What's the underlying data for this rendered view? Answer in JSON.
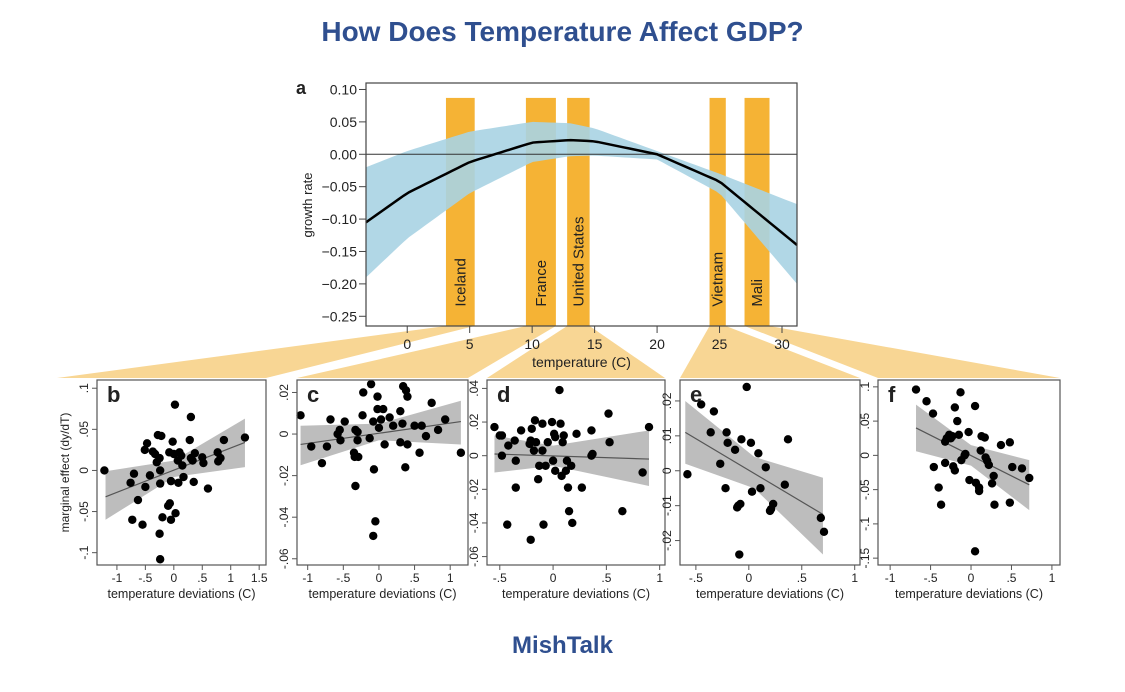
{
  "header": {
    "title": "How Does Temperature Affect GDP?"
  },
  "footer": {
    "brand": "MishTalk"
  },
  "colors": {
    "title": "#2f4f8f",
    "bars": "#f5b335",
    "funnel": "#f8d694",
    "band_main": "#a9d3e3",
    "band_panel": "#bdbdbd",
    "points": "#000000"
  },
  "chart_data": [
    {
      "panel": "a",
      "type": "line",
      "xlabel": "temperature (C)",
      "ylabel": "growth rate",
      "xlim": [
        -3.3,
        31.2
      ],
      "ylim": [
        -0.265,
        0.11
      ],
      "xticks": [
        0,
        5,
        10,
        15,
        20,
        25,
        30
      ],
      "yticks": [
        0.1,
        0.05,
        0.0,
        -0.05,
        -0.1,
        -0.15,
        -0.2,
        -0.25
      ],
      "ytick_labels": [
        "0.10",
        "0.05",
        "0.00",
        "−0.05",
        "−0.10",
        "−0.15",
        "−0.20",
        "−0.25"
      ],
      "curve": {
        "x": [
          -3.3,
          0,
          5,
          10,
          13,
          15,
          20,
          25,
          31.2
        ],
        "y": [
          -0.105,
          -0.06,
          -0.012,
          0.018,
          0.022,
          0.02,
          0.0,
          -0.042,
          -0.14
        ]
      },
      "band_upper": {
        "x": [
          -3.3,
          0,
          5,
          10,
          13,
          15,
          20,
          25,
          31.2
        ],
        "y": [
          -0.02,
          0.005,
          0.035,
          0.05,
          0.048,
          0.04,
          0.005,
          -0.03,
          -0.077
        ]
      },
      "band_lower": {
        "x": [
          -3.3,
          0,
          5,
          10,
          13,
          15,
          20,
          25,
          31.2
        ],
        "y": [
          -0.19,
          -0.13,
          -0.06,
          -0.012,
          -0.003,
          -0.002,
          -0.008,
          -0.06,
          -0.2
        ]
      },
      "countries": [
        {
          "name": "Iceland",
          "range": [
            3.1,
            5.4
          ]
        },
        {
          "name": "France",
          "range": [
            9.5,
            11.9
          ]
        },
        {
          "name": "United States",
          "range": [
            12.8,
            14.6
          ]
        },
        {
          "name": "Vietnam",
          "range": [
            24.2,
            25.5
          ]
        },
        {
          "name": "Mali",
          "range": [
            27.0,
            29.0
          ]
        }
      ]
    },
    {
      "panel": "b",
      "type": "scatter",
      "xlabel": "temperature deviations (C)",
      "ylabel": "marginal effect (dy/dT)",
      "xlim": [
        -1.35,
        1.62
      ],
      "ylim": [
        -0.115,
        0.11
      ],
      "xticks": [
        -1,
        -0.5,
        0,
        0.5,
        1,
        1.5
      ],
      "xtick_labels": [
        "-1",
        "-.5",
        "0",
        ".5",
        "1",
        "1.5"
      ],
      "yticks": [
        -0.1,
        -0.05,
        0,
        0.05,
        0.1
      ],
      "ytick_labels": [
        "-.1",
        "-.05",
        "0",
        ".05",
        ".1"
      ],
      "fit": {
        "x": [
          -1.2,
          1.25
        ],
        "y": [
          -0.032,
          0.034
        ]
      },
      "band": {
        "x": [
          -1.2,
          0,
          1.25
        ],
        "lower": [
          -0.06,
          -0.008,
          0.004
        ],
        "upper": [
          -0.001,
          0.012,
          0.063
        ]
      },
      "points": [
        [
          -1.22,
          0
        ],
        [
          -0.76,
          -0.015
        ],
        [
          -0.7,
          -0.004
        ],
        [
          -0.73,
          -0.06
        ],
        [
          -0.63,
          -0.036
        ],
        [
          -0.55,
          -0.066
        ],
        [
          -0.5,
          -0.02
        ],
        [
          -0.51,
          0.025
        ],
        [
          -0.47,
          0.033
        ],
        [
          -0.42,
          -0.006
        ],
        [
          -0.37,
          0.023
        ],
        [
          -0.33,
          0.02
        ],
        [
          -0.3,
          0.01
        ],
        [
          -0.28,
          0.043
        ],
        [
          -0.25,
          0.015
        ],
        [
          -0.22,
          0.042
        ],
        [
          -0.24,
          0
        ],
        [
          -0.24,
          -0.016
        ],
        [
          -0.25,
          -0.077
        ],
        [
          -0.24,
          -0.108
        ],
        [
          -0.2,
          -0.057
        ],
        [
          -0.1,
          -0.043
        ],
        [
          -0.07,
          -0.04
        ],
        [
          -0.05,
          -0.06
        ],
        [
          -0.05,
          -0.013
        ],
        [
          -0.08,
          0.022
        ],
        [
          -0.02,
          0.035
        ],
        [
          0,
          0.02
        ],
        [
          0.02,
          0.08
        ],
        [
          0.03,
          -0.052
        ],
        [
          0.07,
          0.012
        ],
        [
          0.08,
          -0.015
        ],
        [
          0.1,
          0.022
        ],
        [
          0.13,
          0.018
        ],
        [
          0.15,
          0.006
        ],
        [
          0.17,
          -0.008
        ],
        [
          0.28,
          0.037
        ],
        [
          0.3,
          0.065
        ],
        [
          0.3,
          0.015
        ],
        [
          0.33,
          0.012
        ],
        [
          0.35,
          -0.014
        ],
        [
          0.37,
          0.021
        ],
        [
          0.5,
          0.016
        ],
        [
          0.52,
          0.009
        ],
        [
          0.6,
          -0.022
        ],
        [
          0.77,
          0.022
        ],
        [
          0.78,
          0.011
        ],
        [
          0.82,
          0.015
        ],
        [
          0.88,
          0.037
        ],
        [
          1.25,
          0.04
        ]
      ]
    },
    {
      "panel": "c",
      "type": "scatter",
      "xlabel": "temperature deviations (C)",
      "xlim": [
        -1.15,
        1.25
      ],
      "ylim": [
        -0.063,
        0.026
      ],
      "xticks": [
        -1,
        -0.5,
        0,
        0.5,
        1
      ],
      "xtick_labels": [
        "-1",
        "-.5",
        "0",
        ".5",
        "1"
      ],
      "yticks": [
        -0.06,
        -0.04,
        -0.02,
        0,
        0.02
      ],
      "ytick_labels": [
        "-.06",
        "-.04",
        "-.02",
        "0",
        ".02"
      ],
      "fit": {
        "x": [
          -1.1,
          1.15
        ],
        "y": [
          -0.005,
          0.006
        ]
      },
      "band": {
        "x": [
          -1.1,
          0,
          1.15
        ],
        "lower": [
          -0.015,
          -0.003,
          -0.005
        ],
        "upper": [
          0.004,
          0.005,
          0.016
        ]
      },
      "points": [
        [
          -1.1,
          0.009
        ],
        [
          -0.95,
          -0.006
        ],
        [
          -0.8,
          -0.014
        ],
        [
          -0.73,
          -0.006
        ],
        [
          -0.68,
          0.007
        ],
        [
          -0.58,
          0
        ],
        [
          -0.55,
          0.002
        ],
        [
          -0.54,
          -0.003
        ],
        [
          -0.48,
          0.006
        ],
        [
          -0.35,
          -0.009
        ],
        [
          -0.34,
          -0.011
        ],
        [
          -0.33,
          -0.025
        ],
        [
          -0.33,
          0.002
        ],
        [
          -0.3,
          0.001
        ],
        [
          -0.3,
          -0.003
        ],
        [
          -0.29,
          -0.011
        ],
        [
          -0.22,
          0.02
        ],
        [
          -0.23,
          0.009
        ],
        [
          -0.13,
          -0.002
        ],
        [
          -0.11,
          0.024
        ],
        [
          -0.08,
          0.006
        ],
        [
          -0.07,
          -0.017
        ],
        [
          -0.05,
          -0.042
        ],
        [
          -0.08,
          -0.049
        ],
        [
          -0.02,
          0.018
        ],
        [
          -0.02,
          0.012
        ],
        [
          0,
          0.003
        ],
        [
          0.03,
          0.007
        ],
        [
          0.06,
          0.012
        ],
        [
          0.08,
          -0.005
        ],
        [
          0.15,
          0.008
        ],
        [
          0.2,
          0.004
        ],
        [
          0.3,
          -0.004
        ],
        [
          0.3,
          0.011
        ],
        [
          0.33,
          0.005
        ],
        [
          0.34,
          0.023
        ],
        [
          0.38,
          0.021
        ],
        [
          0.4,
          0.018
        ],
        [
          0.37,
          -0.016
        ],
        [
          0.4,
          -0.005
        ],
        [
          0.5,
          0.004
        ],
        [
          0.57,
          -0.009
        ],
        [
          0.6,
          0.004
        ],
        [
          0.66,
          -0.001
        ],
        [
          0.74,
          0.015
        ],
        [
          0.83,
          0.002
        ],
        [
          0.93,
          0.007
        ],
        [
          1.15,
          -0.009
        ]
      ]
    },
    {
      "panel": "d",
      "type": "scatter",
      "xlabel": "temperature deviations (C)",
      "xlim": [
        -0.62,
        1.05
      ],
      "ylim": [
        -0.065,
        0.045
      ],
      "xticks": [
        -0.5,
        0,
        0.5,
        1
      ],
      "xtick_labels": [
        "-.5",
        "0",
        ".5",
        "1"
      ],
      "yticks": [
        -0.06,
        -0.04,
        -0.02,
        0,
        0.02,
        0.04
      ],
      "ytick_labels": [
        "-.06",
        "-.04",
        "-.02",
        "0",
        ".02",
        ".04"
      ],
      "fit": {
        "x": [
          -0.55,
          0.9
        ],
        "y": [
          0.001,
          -0.002
        ]
      },
      "band": {
        "x": [
          -0.55,
          0,
          0.9
        ],
        "lower": [
          -0.01,
          -0.006,
          -0.018
        ],
        "upper": [
          0.012,
          0.006,
          0.015
        ]
      },
      "points": [
        [
          -0.55,
          0.017
        ],
        [
          -0.5,
          0.012
        ],
        [
          -0.48,
          0.012
        ],
        [
          -0.48,
          0
        ],
        [
          -0.42,
          0.006
        ],
        [
          -0.43,
          -0.041
        ],
        [
          -0.36,
          0.009
        ],
        [
          -0.35,
          -0.003
        ],
        [
          -0.35,
          -0.019
        ],
        [
          -0.3,
          0.015
        ],
        [
          -0.22,
          0.007
        ],
        [
          -0.21,
          0.009
        ],
        [
          -0.2,
          0.016
        ],
        [
          -0.21,
          -0.05
        ],
        [
          -0.17,
          0.021
        ],
        [
          -0.16,
          0.008
        ],
        [
          -0.18,
          0.003
        ],
        [
          -0.14,
          -0.014
        ],
        [
          -0.13,
          -0.006
        ],
        [
          -0.1,
          0.019
        ],
        [
          -0.1,
          0.003
        ],
        [
          -0.07,
          -0.006
        ],
        [
          -0.09,
          -0.041
        ],
        [
          -0.05,
          0.008
        ],
        [
          -0.01,
          0.02
        ],
        [
          0,
          -0.003
        ],
        [
          0.01,
          0.013
        ],
        [
          0.02,
          0.011
        ],
        [
          0.02,
          -0.009
        ],
        [
          0.06,
          0.039
        ],
        [
          0.07,
          0.019
        ],
        [
          0.08,
          -0.012
        ],
        [
          0.09,
          0.008
        ],
        [
          0.1,
          0.012
        ],
        [
          0.13,
          -0.003
        ],
        [
          0.12,
          -0.009
        ],
        [
          0.14,
          -0.019
        ],
        [
          0.15,
          -0.033
        ],
        [
          0.17,
          -0.006
        ],
        [
          0.18,
          -0.04
        ],
        [
          0.22,
          0.013
        ],
        [
          0.27,
          -0.019
        ],
        [
          0.36,
          0.015
        ],
        [
          0.36,
          0
        ],
        [
          0.37,
          0.001
        ],
        [
          0.52,
          0.025
        ],
        [
          0.53,
          0.008
        ],
        [
          0.65,
          -0.033
        ],
        [
          0.84,
          -0.01
        ],
        [
          0.9,
          0.017
        ]
      ]
    },
    {
      "panel": "e",
      "type": "scatter",
      "xlabel": "temperature deviations (C)",
      "xlim": [
        -0.65,
        1.05
      ],
      "ylim": [
        -0.027,
        0.026
      ],
      "xticks": [
        -0.5,
        0,
        0.5,
        1
      ],
      "xtick_labels": [
        "-.5",
        "0",
        ".5",
        "1"
      ],
      "yticks": [
        -0.02,
        -0.01,
        0,
        0.01,
        0.02
      ],
      "ytick_labels": [
        "-.02",
        "-.01",
        "0",
        ".01",
        ".02"
      ],
      "fit": {
        "x": [
          -0.6,
          0.7
        ],
        "y": [
          0.011,
          -0.0125
        ]
      },
      "band": {
        "x": [
          -0.6,
          0.05,
          0.7
        ],
        "lower": [
          0.002,
          -0.005,
          -0.024
        ],
        "upper": [
          0.02,
          0.004,
          -0.002
        ]
      },
      "points": [
        [
          -0.58,
          -0.001
        ],
        [
          -0.45,
          0.019
        ],
        [
          -0.33,
          0.017
        ],
        [
          -0.36,
          0.011
        ],
        [
          -0.27,
          0.002
        ],
        [
          -0.21,
          0.011
        ],
        [
          -0.2,
          0.008
        ],
        [
          -0.22,
          -0.005
        ],
        [
          -0.13,
          0.006
        ],
        [
          -0.1,
          -0.01
        ],
        [
          -0.08,
          -0.0095
        ],
        [
          -0.11,
          -0.0105
        ],
        [
          -0.07,
          0.009
        ],
        [
          -0.09,
          -0.024
        ],
        [
          -0.02,
          0.024
        ],
        [
          0.02,
          0.008
        ],
        [
          0.03,
          -0.006
        ],
        [
          0.09,
          0.005
        ],
        [
          0.11,
          -0.005
        ],
        [
          0.16,
          0.001
        ],
        [
          0.2,
          -0.0115
        ],
        [
          0.21,
          -0.011
        ],
        [
          0.23,
          -0.0095
        ],
        [
          0.34,
          -0.004
        ],
        [
          0.37,
          0.009
        ],
        [
          0.68,
          -0.0135
        ],
        [
          0.71,
          -0.0175
        ]
      ]
    },
    {
      "panel": "f",
      "type": "scatter",
      "xlabel": "temperature deviations (C)",
      "xlim": [
        -1.15,
        1.1
      ],
      "ylim": [
        -0.16,
        0.11
      ],
      "xticks": [
        -1,
        -0.5,
        0,
        0.5,
        1
      ],
      "xtick_labels": [
        "-1",
        "-.5",
        "0",
        ".5",
        "1"
      ],
      "yticks": [
        -0.15,
        -0.1,
        -0.05,
        0,
        0.05,
        0.1
      ],
      "ytick_labels": [
        "-.15",
        "-.1",
        "-.05",
        "0",
        ".05",
        ".1"
      ],
      "fit": {
        "x": [
          -0.68,
          0.72
        ],
        "y": [
          0.04,
          -0.043
        ]
      },
      "band": {
        "x": [
          -0.68,
          0,
          0.72
        ],
        "lower": [
          0.006,
          -0.015,
          -0.08
        ],
        "upper": [
          0.074,
          0.015,
          -0.007
        ]
      },
      "points": [
        [
          -0.68,
          0.096
        ],
        [
          -0.55,
          0.079
        ],
        [
          -0.47,
          0.061
        ],
        [
          -0.46,
          -0.017
        ],
        [
          -0.4,
          -0.047
        ],
        [
          -0.37,
          -0.072
        ],
        [
          -0.32,
          0.02
        ],
        [
          -0.32,
          -0.011
        ],
        [
          -0.3,
          0.025
        ],
        [
          -0.27,
          0.03
        ],
        [
          -0.25,
          0.025
        ],
        [
          -0.23,
          0.028
        ],
        [
          -0.22,
          -0.016
        ],
        [
          -0.2,
          0.07
        ],
        [
          -0.2,
          -0.022
        ],
        [
          -0.17,
          0.05
        ],
        [
          -0.15,
          0.03
        ],
        [
          -0.13,
          0.092
        ],
        [
          -0.12,
          -0.007
        ],
        [
          -0.08,
          0
        ],
        [
          -0.07,
          0.002
        ],
        [
          -0.03,
          0.034
        ],
        [
          -0.02,
          -0.036
        ],
        [
          0.05,
          0.072
        ],
        [
          0.06,
          -0.04
        ],
        [
          0.05,
          -0.14
        ],
        [
          0.1,
          -0.047
        ],
        [
          0.1,
          -0.052
        ],
        [
          0.12,
          0.007
        ],
        [
          0.13,
          0.028
        ],
        [
          0.17,
          0.026
        ],
        [
          0.18,
          -0.003
        ],
        [
          0.2,
          -0.008
        ],
        [
          0.22,
          -0.014
        ],
        [
          0.26,
          -0.041
        ],
        [
          0.28,
          -0.03
        ],
        [
          0.29,
          -0.072
        ],
        [
          0.37,
          0.015
        ],
        [
          0.48,
          0.019
        ],
        [
          0.48,
          -0.069
        ],
        [
          0.51,
          -0.017
        ],
        [
          0.63,
          -0.019
        ],
        [
          0.72,
          -0.033
        ]
      ]
    }
  ]
}
